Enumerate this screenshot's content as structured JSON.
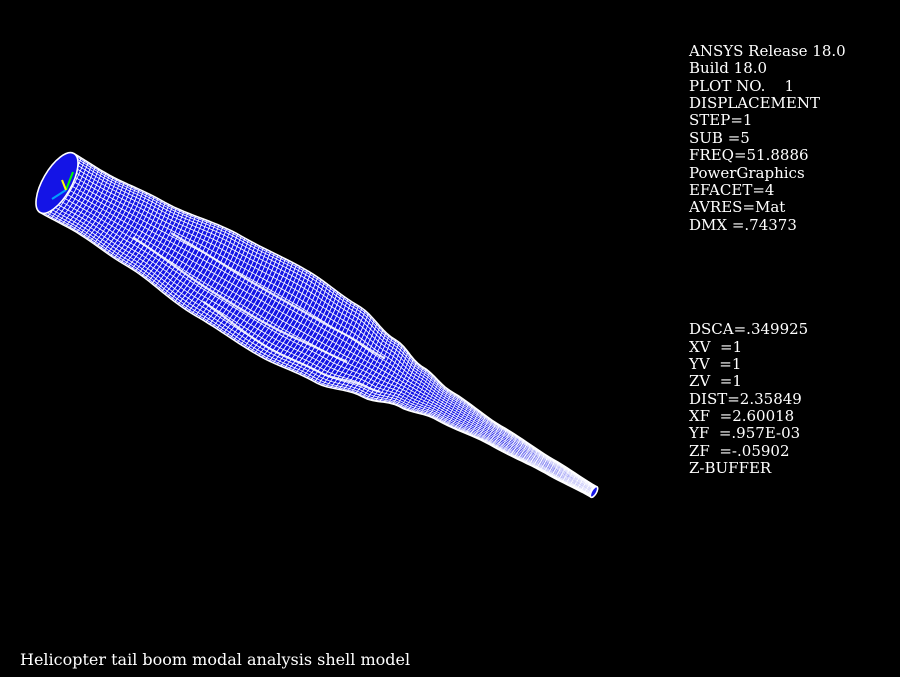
{
  "window": {
    "background_color": "#000000",
    "text_color": "#ffffff"
  },
  "info_panel": {
    "header_lines": [
      "ANSYS Release 18.0",
      "Build 18.0",
      "PLOT NO.    1",
      "DISPLACEMENT",
      "STEP=1",
      "SUB =5",
      "FREQ=51.8886",
      "PowerGraphics",
      "EFACET=4",
      "AVRES=Mat",
      "DMX =.74373"
    ],
    "view_lines": [
      "DSCA=.349925",
      "XV  =1",
      "YV  =1",
      "ZV  =1",
      "DIST=2.35849",
      "XF  =2.60018",
      "YF  =.957E-03",
      "ZF  =-.05902",
      "Z-BUFFER"
    ]
  },
  "caption": "Helicopter tail boom modal analysis shell model",
  "model": {
    "fill_color": "#1414e6",
    "mesh_color": "#ffffff",
    "triad": {
      "x_axis_color": "#00a0ff",
      "y_axis_color": "#00ff00",
      "z_axis_color": "#ffff00"
    }
  }
}
